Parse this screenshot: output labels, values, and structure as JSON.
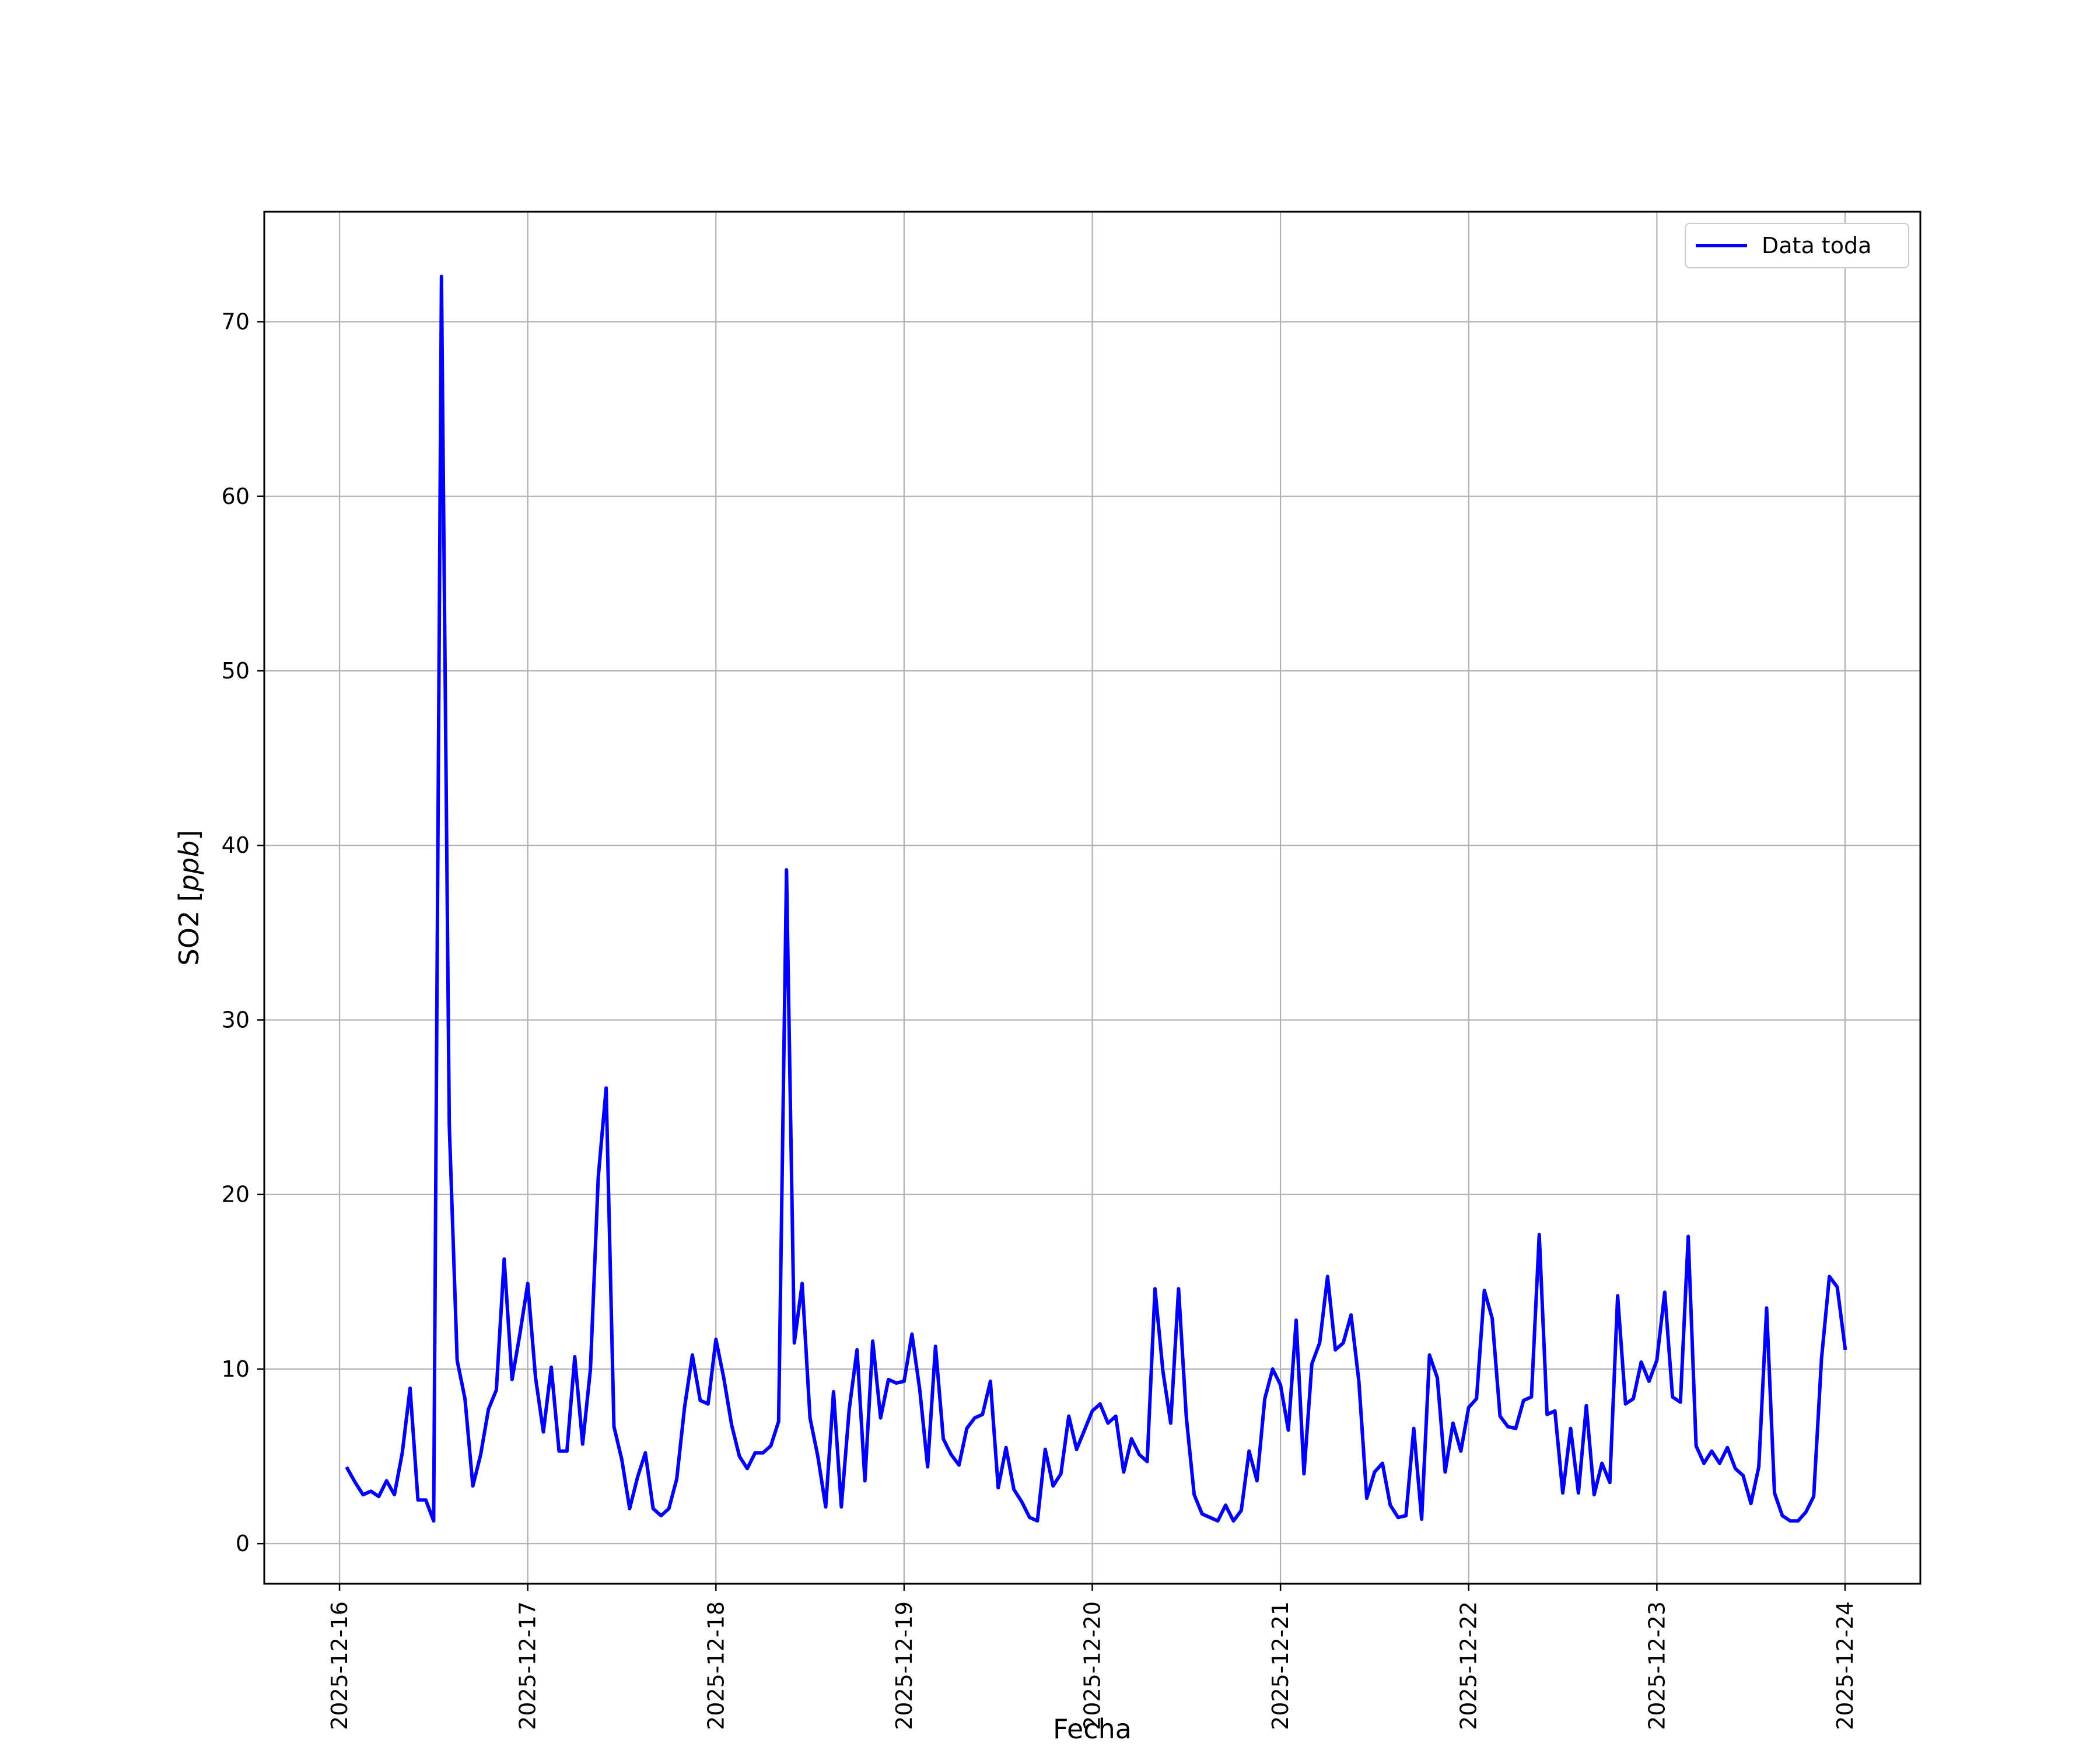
{
  "chart_data": {
    "type": "line",
    "title": "",
    "xlabel": "Fecha",
    "ylabel": "SO2 [",
    "ylabel_italic": "ppb",
    "ylabel_end": "]",
    "xlim": [
      "2025-12-15T14:24",
      "2025-12-24T09:36"
    ],
    "ylim": [
      -2.3,
      76.3
    ],
    "grid": true,
    "legend_position": "upper right",
    "x_ticks": [
      "2025-12-16",
      "2025-12-17",
      "2025-12-18",
      "2025-12-19",
      "2025-12-20",
      "2025-12-21",
      "2025-12-22",
      "2025-12-23",
      "2025-12-24"
    ],
    "y_ticks": [
      0,
      10,
      20,
      30,
      40,
      50,
      60,
      70
    ],
    "series": [
      {
        "name": "Data toda",
        "color": "#0000ff",
        "interval_hours": 1,
        "x_start": "2025-12-16T01:00",
        "values": [
          4.3,
          3.5,
          2.8,
          3.0,
          2.7,
          3.6,
          2.8,
          5.2,
          8.9,
          2.5,
          2.5,
          1.3,
          72.6,
          24.0,
          10.5,
          8.3,
          3.3,
          5.1,
          7.7,
          8.8,
          16.3,
          9.4,
          12.0,
          14.9,
          9.5,
          6.4,
          10.1,
          5.3,
          5.3,
          10.7,
          5.7,
          10.0,
          21.0,
          26.1,
          6.7,
          4.8,
          2.0,
          3.8,
          5.2,
          2.0,
          1.6,
          2.0,
          3.7,
          7.8,
          10.8,
          8.2,
          8.0,
          11.7,
          9.5,
          6.8,
          5.0,
          4.3,
          5.2,
          5.2,
          5.6,
          7.0,
          38.6,
          11.5,
          14.9,
          7.2,
          5.0,
          2.1,
          8.7,
          2.1,
          7.7,
          11.1,
          3.6,
          11.6,
          7.2,
          9.4,
          9.2,
          9.3,
          12.0,
          8.8,
          4.4,
          11.3,
          6.0,
          5.1,
          4.5,
          6.6,
          7.2,
          7.4,
          9.3,
          3.2,
          5.5,
          3.1,
          2.4,
          1.5,
          1.3,
          5.4,
          3.3,
          4.0,
          7.3,
          5.4,
          6.5,
          7.6,
          8.0,
          6.9,
          7.3,
          4.1,
          6.0,
          5.1,
          4.7,
          14.6,
          9.9,
          6.9,
          14.6,
          7.2,
          2.8,
          1.7,
          1.5,
          1.3,
          2.2,
          1.3,
          1.9,
          5.3,
          3.6,
          8.3,
          10.0,
          9.1,
          6.5,
          12.8,
          4.0,
          10.3,
          11.5,
          15.3,
          11.1,
          11.5,
          13.1,
          9.3,
          2.6,
          4.1,
          4.6,
          2.2,
          1.5,
          1.6,
          6.6,
          1.4,
          10.8,
          9.5,
          4.1,
          6.9,
          5.3,
          7.8,
          8.3,
          14.5,
          12.9,
          7.3,
          6.7,
          6.6,
          8.2,
          8.4,
          17.7,
          7.4,
          7.6,
          2.9,
          6.6,
          2.9,
          7.9,
          2.8,
          4.6,
          3.5,
          14.2,
          8.0,
          8.3,
          10.4,
          9.3,
          10.5,
          14.4,
          8.4,
          8.1,
          17.6,
          5.6,
          4.6,
          5.3,
          4.6,
          5.5,
          4.3,
          3.9,
          2.3,
          4.4,
          13.5,
          2.9,
          1.6,
          1.3,
          1.3,
          1.8,
          2.7,
          10.6,
          15.3,
          14.7,
          11.2
        ]
      }
    ]
  }
}
